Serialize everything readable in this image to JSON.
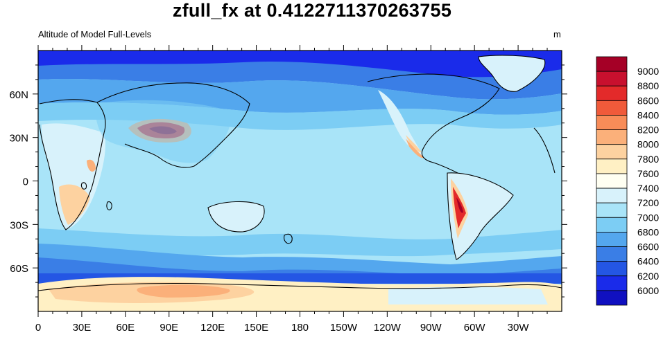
{
  "title": "zfull_fx at 0.4122711370263755",
  "subtitle_left": "Altitude of Model Full-Levels",
  "subtitle_right": "m",
  "map": {
    "projection": "cylindrical-equidistant",
    "center_longitude": 180,
    "lat_ticks": [
      "60N",
      "30N",
      "0",
      "30S",
      "60S"
    ],
    "lon_ticks": [
      "0",
      "30E",
      "60E",
      "90E",
      "120E",
      "150E",
      "180",
      "150W",
      "120W",
      "90W",
      "60W",
      "30W"
    ]
  },
  "colorbar": {
    "labels": [
      "9000",
      "8800",
      "8600",
      "8400",
      "8200",
      "8000",
      "7800",
      "7600",
      "7400",
      "7200",
      "7000",
      "6800",
      "6600",
      "6400",
      "6200",
      "6000"
    ],
    "colors": [
      "#a50026",
      "#c8102e",
      "#e32a2a",
      "#f05a3a",
      "#f88c58",
      "#fbb07a",
      "#fdd2a0",
      "#fff0c4",
      "#fffff2",
      "#d8f2fb",
      "#a9e4f8",
      "#7ccdf4",
      "#54a7ee",
      "#3a7ee6",
      "#2456e4",
      "#1a2bea",
      "#1010c0"
    ]
  }
}
